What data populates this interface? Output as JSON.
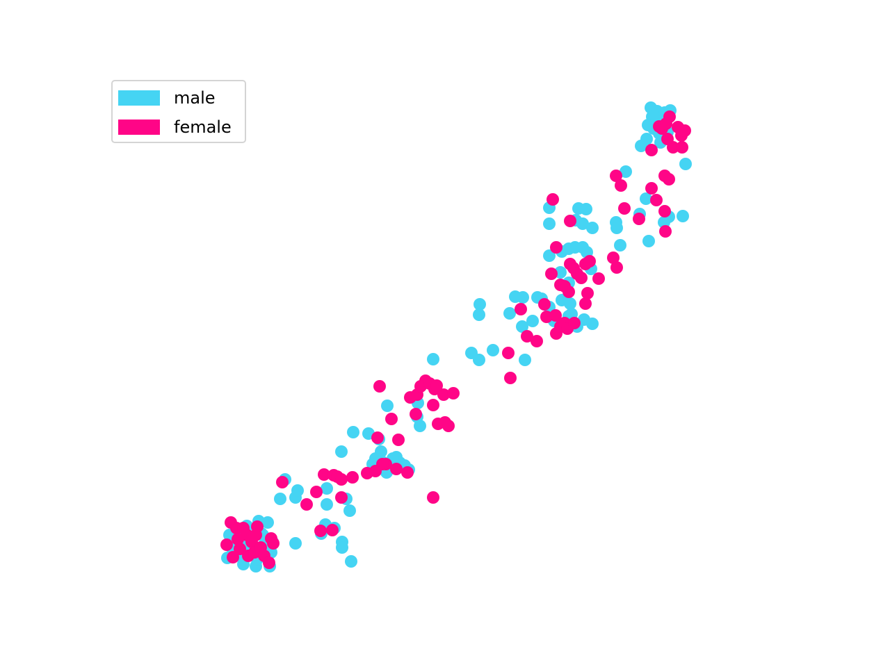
{
  "chart_data": {
    "type": "scatter",
    "title": "",
    "xlabel": "",
    "ylabel": "",
    "axes_visible": false,
    "legend_placement": "upper-left",
    "series": [
      {
        "name": "male",
        "color": "#45d4f3",
        "points": [
          [
            327,
            803
          ],
          [
            330,
            770
          ],
          [
            334,
            789
          ],
          [
            340,
            763
          ],
          [
            345,
            800
          ],
          [
            350,
            812
          ],
          [
            355,
            757
          ],
          [
            360,
            775
          ],
          [
            365,
            790
          ],
          [
            368,
            815
          ],
          [
            372,
            750
          ],
          [
            376,
            768
          ],
          [
            380,
            784
          ],
          [
            385,
            800
          ],
          [
            388,
            815
          ],
          [
            390,
            795
          ],
          [
            385,
            752
          ],
          [
            378,
            770
          ],
          [
            392,
            780
          ],
          [
            348,
            780
          ],
          [
            358,
            792
          ],
          [
            370,
            805
          ],
          [
            338,
            795
          ],
          [
            352,
            766
          ],
          [
            425,
            782
          ],
          [
            403,
            718
          ],
          [
            410,
            690
          ],
          [
            425,
            716
          ],
          [
            428,
            706
          ],
          [
            470,
            703
          ],
          [
            470,
            726
          ],
          [
            468,
            755
          ],
          [
            462,
            768
          ],
          [
            481,
            760
          ],
          [
            492,
            780
          ],
          [
            492,
            788
          ],
          [
            503,
            735
          ],
          [
            498,
            718
          ],
          [
            505,
            808
          ],
          [
            491,
            650
          ],
          [
            508,
            622
          ],
          [
            530,
            624
          ],
          [
            545,
            632
          ],
          [
            548,
            650
          ],
          [
            540,
            660
          ],
          [
            536,
            668
          ],
          [
            556,
            680
          ],
          [
            562,
            670
          ],
          [
            570,
            658
          ],
          [
            575,
            666
          ],
          [
            582,
            670
          ],
          [
            588,
            676
          ],
          [
            565,
            660
          ],
          [
            550,
            665
          ],
          [
            557,
            584
          ],
          [
            601,
            580
          ],
          [
            600,
            600
          ],
          [
            604,
            613
          ],
          [
            623,
            517
          ],
          [
            690,
            438
          ],
          [
            689,
            453
          ],
          [
            678,
            508
          ],
          [
            689,
            518
          ],
          [
            709,
            504
          ],
          [
            755,
            518
          ],
          [
            733,
            451
          ],
          [
            741,
            427
          ],
          [
            752,
            428
          ],
          [
            751,
            470
          ],
          [
            766,
            462
          ],
          [
            773,
            428
          ],
          [
            779,
            430
          ],
          [
            790,
            442
          ],
          [
            797,
            462
          ],
          [
            808,
            432
          ],
          [
            820,
            437
          ],
          [
            822,
            452
          ],
          [
            840,
            460
          ],
          [
            852,
            466
          ],
          [
            830,
            470
          ],
          [
            818,
            455
          ],
          [
            790,
            299
          ],
          [
            790,
            322
          ],
          [
            832,
            300
          ],
          [
            843,
            301
          ],
          [
            828,
            317
          ],
          [
            838,
            322
          ],
          [
            852,
            328
          ],
          [
            790,
            368
          ],
          [
            808,
            362
          ],
          [
            818,
            358
          ],
          [
            827,
            356
          ],
          [
            838,
            356
          ],
          [
            844,
            363
          ],
          [
            850,
            387
          ],
          [
            818,
            407
          ],
          [
            806,
            392
          ],
          [
            886,
            320
          ],
          [
            887,
            328
          ],
          [
            892,
            353
          ],
          [
            900,
            247
          ],
          [
            920,
            308
          ],
          [
            929,
            286
          ],
          [
            933,
            347
          ],
          [
            955,
            320
          ],
          [
            962,
            312
          ],
          [
            982,
            311
          ],
          [
            986,
            236
          ],
          [
            922,
            210
          ],
          [
            930,
            200
          ],
          [
            936,
            155
          ],
          [
            938,
            168
          ],
          [
            945,
            160
          ],
          [
            952,
            175
          ],
          [
            960,
            190
          ],
          [
            964,
            159
          ],
          [
            950,
            205
          ],
          [
            940,
            185
          ],
          [
            956,
            162
          ],
          [
            932,
            180
          ],
          [
            948,
            192
          ]
        ]
      },
      {
        "name": "female",
        "color": "#ff0587",
        "points": [
          [
            326,
            784
          ],
          [
            332,
            752
          ],
          [
            335,
            802
          ],
          [
            340,
            760
          ],
          [
            345,
            790
          ],
          [
            350,
            760
          ],
          [
            357,
            800
          ],
          [
            362,
            780
          ],
          [
            366,
            795
          ],
          [
            370,
            758
          ],
          [
            375,
            788
          ],
          [
            380,
            800
          ],
          [
            387,
            810
          ],
          [
            390,
            775
          ],
          [
            393,
            782
          ],
          [
            342,
            776
          ],
          [
            355,
            770
          ],
          [
            368,
            770
          ],
          [
            406,
            694
          ],
          [
            441,
            726
          ],
          [
            455,
            708
          ],
          [
            461,
            764
          ],
          [
            466,
            683
          ],
          [
            478,
            763
          ],
          [
            480,
            684
          ],
          [
            485,
            686
          ],
          [
            491,
            690
          ],
          [
            491,
            716
          ],
          [
            507,
            687
          ],
          [
            528,
            681
          ],
          [
            540,
            678
          ],
          [
            546,
            556
          ],
          [
            563,
            603
          ],
          [
            555,
            668
          ],
          [
            570,
            675
          ],
          [
            573,
            633
          ],
          [
            586,
            680
          ],
          [
            543,
            630
          ],
          [
            550,
            668
          ],
          [
            590,
            572
          ],
          [
            598,
            596
          ],
          [
            600,
            568
          ],
          [
            605,
            556
          ],
          [
            612,
            548
          ],
          [
            618,
            552
          ],
          [
            625,
            560
          ],
          [
            623,
            583
          ],
          [
            630,
            610
          ],
          [
            638,
            568
          ],
          [
            640,
            608
          ],
          [
            645,
            613
          ],
          [
            652,
            566
          ],
          [
            628,
            555
          ],
          [
            623,
            716
          ],
          [
            731,
            508
          ],
          [
            734,
            544
          ],
          [
            749,
            445
          ],
          [
            758,
            484
          ],
          [
            772,
            491
          ],
          [
            783,
            438
          ],
          [
            786,
            456
          ],
          [
            799,
            454
          ],
          [
            800,
            480
          ],
          [
            806,
            470
          ],
          [
            812,
            465
          ],
          [
            816,
            473
          ],
          [
            826,
            465
          ],
          [
            842,
            437
          ],
          [
            845,
            422
          ],
          [
            793,
            394
          ],
          [
            800,
            356
          ],
          [
            806,
            410
          ],
          [
            812,
            412
          ],
          [
            818,
            420
          ],
          [
            820,
            380
          ],
          [
            825,
            386
          ],
          [
            830,
            394
          ],
          [
            836,
            400
          ],
          [
            842,
            380
          ],
          [
            848,
            376
          ],
          [
            861,
            401
          ],
          [
            882,
            371
          ],
          [
            887,
            385
          ],
          [
            795,
            287
          ],
          [
            820,
            318
          ],
          [
            886,
            253
          ],
          [
            893,
            267
          ],
          [
            898,
            300
          ],
          [
            919,
            315
          ],
          [
            937,
            271
          ],
          [
            944,
            288
          ],
          [
            956,
            253
          ],
          [
            962,
            258
          ],
          [
            956,
            304
          ],
          [
            957,
            333
          ],
          [
            937,
            216
          ],
          [
            952,
            185
          ],
          [
            960,
            200
          ],
          [
            968,
            212
          ],
          [
            975,
            183
          ],
          [
            980,
            195
          ],
          [
            985,
            188
          ],
          [
            981,
            212
          ],
          [
            963,
            168
          ],
          [
            948,
            182
          ],
          [
            958,
            178
          ]
        ]
      }
    ]
  }
}
